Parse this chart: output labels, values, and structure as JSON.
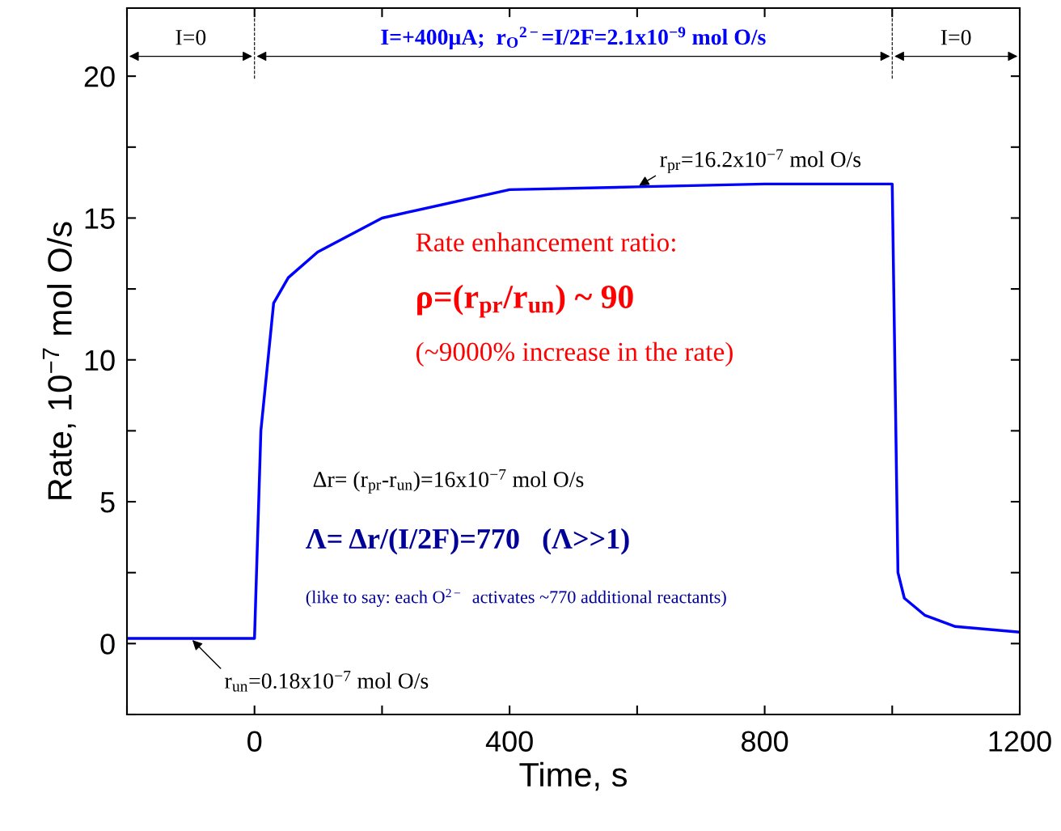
{
  "chart_data": {
    "type": "line",
    "xlabel": "Time, s",
    "ylabel": "Rate, 10$^{−7}$ mol O/s",
    "x": [
      -200,
      0,
      10,
      30,
      53,
      99,
      200,
      400,
      600,
      800,
      1000,
      1009,
      1019,
      1051,
      1099,
      1200
    ],
    "series": [
      {
        "color": "#0000ff",
        "values": [
          0.18,
          0.18,
          7.5,
          12,
          12.9,
          13.8,
          15,
          16,
          16.1,
          16.2,
          16.2,
          2.5,
          1.6,
          1.0,
          0.6,
          0.4
        ]
      }
    ],
    "xlim": [
      -200,
      1200
    ],
    "ylim": [
      -2.5,
      22.4
    ],
    "xticks": [
      {
        "value": -200,
        "label": null
      },
      0,
      {
        "value": 200,
        "label": null
      },
      400,
      {
        "value": 600,
        "label": null
      },
      800,
      {
        "value": 1000,
        "label": null
      },
      1200
    ],
    "yticks": [
      {
        "value": -2.5,
        "label": null
      },
      0,
      {
        "value": 2.5,
        "label": null
      },
      5,
      {
        "value": 7.5,
        "label": null
      },
      10,
      {
        "value": 12.5,
        "label": null
      },
      15,
      {
        "value": 17.5,
        "label": null
      },
      20
    ],
    "grid": false,
    "legend": false,
    "marker": "none",
    "line_style": "solid",
    "ref_lines": [
      {
        "axis": "x",
        "value": 0,
        "color": "#000000",
        "line_style": "dashed"
      },
      {
        "axis": "x",
        "value": 1000,
        "color": "#000000",
        "line_style": "dashed"
      }
    ],
    "annotations": [
      "I=0",
      "I=+400μA;  r$_{O}$$^{2−}$=I/2F=2.1x10$^{−9}$ mol O/s",
      "I=0",
      {
        "text": "r$_{pr}$=16.2x10$^{−7}$ mol O/s",
        "x": 600,
        "y": 16.1
      },
      {
        "text": "r$_{un}$=0.18x10$^{−7}$ mol O/s",
        "x": -100,
        "y": 0.18
      },
      "Rate enhancement ratio:",
      "ρ=(r$_{pr}$/r$_{un}$) ~ 90",
      "(~9000% increase in the rate)",
      "Δr= (r$_{pr}$-r$_{un}$)=16x10$^{−7}$ mol O/s",
      "Λ= Δr/(I/2F)=770   (Λ>>1)",
      "(like to say: each O$^{2−}$  activates ~770 additional reactants)"
    ]
  }
}
